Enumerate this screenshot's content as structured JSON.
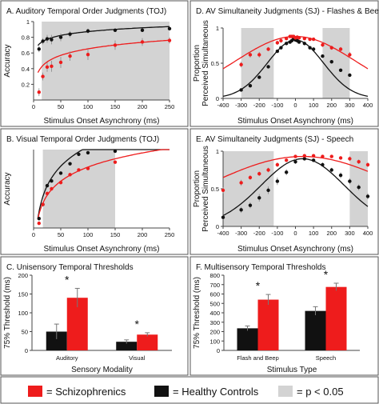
{
  "colors": {
    "schizo": "#ee1c1c",
    "control": "#111111",
    "shade": "#d3d3d3",
    "panel_bg": "#ffffff",
    "frame": "#555555"
  },
  "legend": [
    {
      "key": "schizo",
      "label": "= Schizophrenics"
    },
    {
      "key": "control",
      "label": "= Healthy Controls"
    },
    {
      "key": "shade",
      "label": "= p < 0.05"
    }
  ],
  "chart_data": [
    {
      "id": "A",
      "type": "scatter",
      "title": "A. Auditory Temporal Order Judgments (TOJ)",
      "xlabel": "Stimulus Onset Asynchrony (ms)",
      "ylabel": "Accuracy",
      "xlim": [
        0,
        250
      ],
      "ylim": [
        0,
        1
      ],
      "xticks": [
        0,
        50,
        100,
        150,
        200,
        250
      ],
      "yticks": [
        0.2,
        0.4,
        0.6,
        0.8,
        1
      ],
      "shade_ranges": [
        [
          15,
          250
        ]
      ],
      "series": [
        {
          "key": "control",
          "x": [
            10,
            17,
            25,
            33,
            50,
            67,
            100,
            150,
            200,
            250
          ],
          "y": [
            0.65,
            0.75,
            0.78,
            0.77,
            0.8,
            0.84,
            0.88,
            0.89,
            0.89,
            0.91
          ],
          "err": [
            0.04,
            0.04,
            0.05,
            0.06,
            0.05,
            0.04,
            0.03,
            0.02,
            0.02,
            0.02
          ]
        },
        {
          "key": "schizo",
          "x": [
            10,
            17,
            25,
            33,
            50,
            67,
            100,
            150,
            200,
            250
          ],
          "y": [
            0.1,
            0.3,
            0.42,
            0.43,
            0.48,
            0.56,
            0.58,
            0.7,
            0.74,
            0.76
          ],
          "err": [
            0.05,
            0.05,
            0.06,
            0.07,
            0.07,
            0.06,
            0.07,
            0.06,
            0.05,
            0.04
          ]
        }
      ],
      "fit_type": "log",
      "fits": [
        {
          "key": "control",
          "a": 0.55,
          "b": 0.07
        },
        {
          "key": "schizo",
          "a": 0.1,
          "b": 0.12
        }
      ]
    },
    {
      "id": "B",
      "type": "scatter",
      "title": "B. Visual Temporal Order Judgments (TOJ)",
      "xlabel": "Stimulus Onset Asynchrony (ms)",
      "ylabel": "Accuracy",
      "xlim": [
        0,
        250
      ],
      "ylim": [
        0.5,
        1
      ],
      "xticks": [
        0,
        50,
        100,
        150,
        200,
        250
      ],
      "yticks": [],
      "shade_ranges": [
        [
          17,
          150
        ]
      ],
      "series": [
        {
          "key": "control",
          "x": [
            10,
            17,
            25,
            33,
            50,
            67,
            83,
            100,
            150
          ],
          "y": [
            0.56,
            0.65,
            0.77,
            0.8,
            0.85,
            0.91,
            0.97,
            0.98,
            0.99
          ],
          "err": [
            0.01,
            0.01,
            0.01,
            0.01,
            0.01,
            0.01,
            0.01,
            0.01,
            0.01
          ]
        },
        {
          "key": "schizo",
          "x": [
            10,
            17,
            25,
            33,
            50,
            67,
            83,
            100,
            150
          ],
          "y": [
            0.53,
            0.65,
            0.72,
            0.75,
            0.79,
            0.84,
            0.87,
            0.88,
            0.92
          ],
          "err": [
            0.01,
            0.01,
            0.01,
            0.01,
            0.01,
            0.01,
            0.01,
            0.01,
            0.01
          ]
        }
      ],
      "fit_type": "log",
      "fits": [
        {
          "key": "control",
          "a": 0.19,
          "b": 0.18
        },
        {
          "key": "schizo",
          "a": 0.29,
          "b": 0.13
        }
      ]
    },
    {
      "id": "C",
      "type": "bar",
      "title": "C. Unisensory Temporal Thresholds",
      "xlabel": "Sensory Modality",
      "ylabel": "75% Threshold (ms)",
      "categories": [
        "Auditory",
        "Visual"
      ],
      "ylim": [
        0,
        200
      ],
      "yticks": [
        0,
        50,
        100,
        150,
        200
      ],
      "significant": [
        "*",
        "*"
      ],
      "series": [
        {
          "key": "control",
          "values": [
            50,
            23
          ],
          "err": [
            20,
            5
          ]
        },
        {
          "key": "schizo",
          "values": [
            140,
            42
          ],
          "err": [
            25,
            5
          ]
        }
      ]
    },
    {
      "id": "D",
      "type": "scatter",
      "title": "D. AV Simultaneity Judgments (SJ) - Flashes & Beeps",
      "xlabel": "Stimulus Onset Asynchrony (ms)",
      "ylabel": "Proportion Perceived Simultaneous",
      "xlim": [
        -400,
        400
      ],
      "ylim": [
        0,
        1
      ],
      "xticks": [
        -400,
        -300,
        -200,
        -100,
        0,
        100,
        200,
        300,
        400
      ],
      "yticks": [
        0,
        0.5,
        1
      ],
      "shade_ranges": [
        [
          -300,
          -120
        ],
        [
          150,
          300
        ]
      ],
      "series": [
        {
          "key": "control",
          "x": [
            -300,
            -250,
            -200,
            -150,
            -100,
            -80,
            -50,
            -30,
            -20,
            -10,
            0,
            10,
            20,
            50,
            80,
            100,
            150,
            200,
            250,
            300
          ],
          "y": [
            0.12,
            0.18,
            0.3,
            0.45,
            0.67,
            0.72,
            0.78,
            0.8,
            0.82,
            0.85,
            0.83,
            0.82,
            0.8,
            0.78,
            0.72,
            0.7,
            0.6,
            0.52,
            0.4,
            0.33
          ],
          "err": [
            0.02,
            0.02,
            0.02,
            0.02,
            0.02,
            0.02,
            0.02,
            0.02,
            0.02,
            0.02,
            0.02,
            0.02,
            0.02,
            0.02,
            0.02,
            0.02,
            0.02,
            0.02,
            0.02,
            0.02
          ]
        },
        {
          "key": "schizo",
          "x": [
            -300,
            -250,
            -200,
            -150,
            -100,
            -80,
            -50,
            -30,
            -20,
            -10,
            0,
            10,
            20,
            50,
            80,
            100,
            150,
            200,
            250,
            300
          ],
          "y": [
            0.48,
            0.62,
            0.62,
            0.7,
            0.79,
            0.82,
            0.85,
            0.88,
            0.88,
            0.88,
            0.86,
            0.87,
            0.86,
            0.85,
            0.84,
            0.84,
            0.76,
            0.72,
            0.7,
            0.62
          ],
          "err": [
            0.04,
            0.04,
            0.04,
            0.03,
            0.03,
            0.03,
            0.02,
            0.02,
            0.02,
            0.02,
            0.02,
            0.02,
            0.02,
            0.02,
            0.02,
            0.02,
            0.03,
            0.03,
            0.03,
            0.04
          ]
        }
      ],
      "fit_type": "gauss",
      "fits": [
        {
          "key": "control",
          "amp": 0.83,
          "mu": 0,
          "sigma": 155
        },
        {
          "key": "schizo",
          "amp": 0.88,
          "mu": 0,
          "sigma": 330
        }
      ]
    },
    {
      "id": "E",
      "type": "scatter",
      "title": "E. AV Simultaneity Judgments (SJ) - Speech",
      "xlabel": "Stimulus Onset Asynchrony (ms)",
      "ylabel": "Proportion Perceived Simultaneous",
      "xlim": [
        -400,
        400
      ],
      "ylim": [
        0,
        1
      ],
      "xticks": [
        -400,
        -300,
        -200,
        -100,
        0,
        100,
        200,
        300,
        400
      ],
      "yticks": [
        0,
        0.5,
        1
      ],
      "shade_ranges": [
        [
          -400,
          -120
        ],
        [
          300,
          400
        ]
      ],
      "series": [
        {
          "key": "control",
          "x": [
            -400,
            -300,
            -250,
            -200,
            -150,
            -100,
            -50,
            0,
            50,
            100,
            150,
            200,
            250,
            300,
            350,
            400
          ],
          "y": [
            0.12,
            0.22,
            0.28,
            0.38,
            0.48,
            0.6,
            0.72,
            0.86,
            0.9,
            0.88,
            0.82,
            0.75,
            0.68,
            0.6,
            0.52,
            0.4
          ],
          "err": [
            0.03,
            0.04,
            0.04,
            0.05,
            0.05,
            0.05,
            0.04,
            0.03,
            0.02,
            0.02,
            0.03,
            0.03,
            0.04,
            0.04,
            0.04,
            0.04
          ]
        },
        {
          "key": "schizo",
          "x": [
            -400,
            -300,
            -250,
            -200,
            -150,
            -100,
            -50,
            0,
            50,
            100,
            150,
            200,
            250,
            300,
            350,
            400
          ],
          "y": [
            0.48,
            0.58,
            0.65,
            0.7,
            0.75,
            0.82,
            0.88,
            0.93,
            0.94,
            0.94,
            0.93,
            0.93,
            0.91,
            0.9,
            0.86,
            0.82
          ],
          "err": [
            0.04,
            0.04,
            0.03,
            0.03,
            0.03,
            0.03,
            0.02,
            0.02,
            0.02,
            0.02,
            0.02,
            0.02,
            0.02,
            0.03,
            0.03,
            0.03
          ]
        }
      ],
      "fit_type": "gauss",
      "fits": [
        {
          "key": "control",
          "amp": 0.9,
          "mu": 40,
          "sigma": 230
        },
        {
          "key": "schizo",
          "amp": 0.93,
          "mu": 40,
          "sigma": 520
        }
      ]
    },
    {
      "id": "F",
      "type": "bar",
      "title": "F. Multisensory Temporal Thresholds",
      "xlabel": "Stimulus Type",
      "ylabel": "75% Threshold (ms)",
      "categories": [
        "Flash and Beep",
        "Speech"
      ],
      "ylim": [
        0,
        800
      ],
      "yticks": [
        0,
        100,
        200,
        300,
        400,
        500,
        600,
        700,
        800
      ],
      "significant": [
        "*",
        "*"
      ],
      "series": [
        {
          "key": "control",
          "values": [
            235,
            420
          ],
          "err": [
            25,
            45
          ]
        },
        {
          "key": "schizo",
          "values": [
            540,
            675
          ],
          "err": [
            55,
            40
          ]
        }
      ]
    }
  ]
}
